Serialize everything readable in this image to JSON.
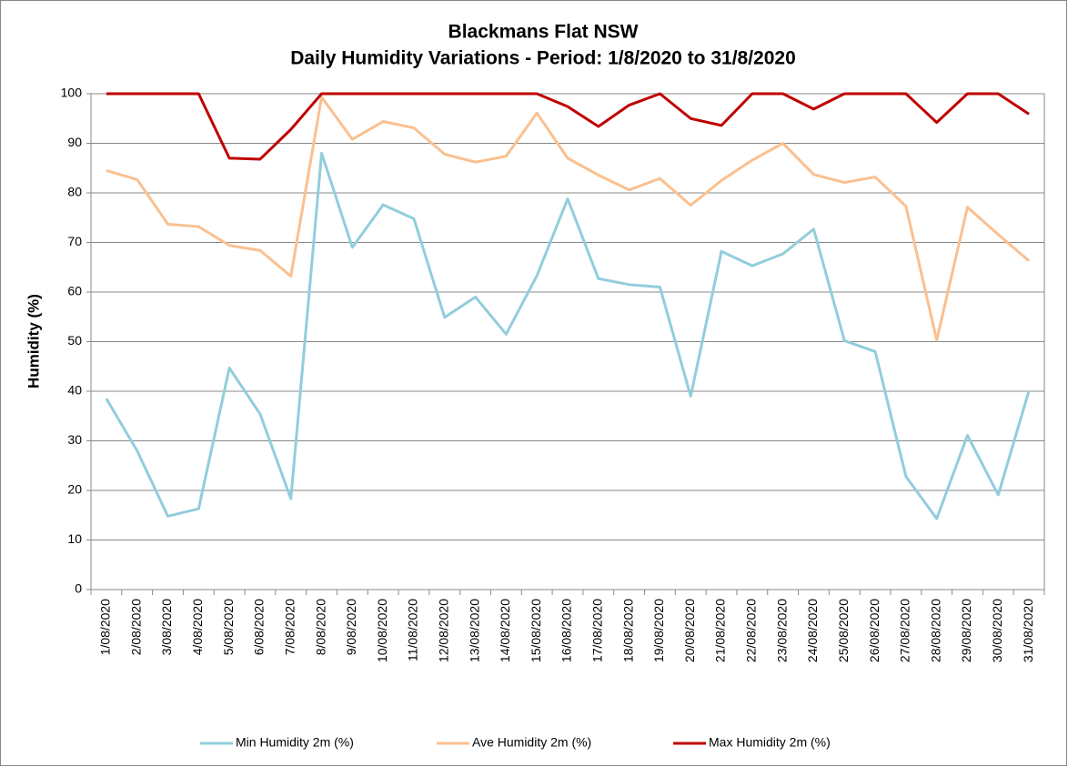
{
  "chart_data": {
    "type": "line",
    "title": "Blackmans Flat NSW",
    "subtitle": "Daily Humidity Variations - Period: 1/8/2020 to 31/8/2020",
    "y_label": "Humidity (%)",
    "categories": [
      "1/08/2020",
      "2/08/2020",
      "3/08/2020",
      "4/08/2020",
      "5/08/2020",
      "6/08/2020",
      "7/08/2020",
      "8/08/2020",
      "9/08/2020",
      "10/08/2020",
      "11/08/2020",
      "12/08/2020",
      "13/08/2020",
      "14/08/2020",
      "15/08/2020",
      "16/08/2020",
      "17/08/2020",
      "18/08/2020",
      "19/08/2020",
      "20/08/2020",
      "21/08/2020",
      "22/08/2020",
      "23/08/2020",
      "24/08/2020",
      "25/08/2020",
      "26/08/2020",
      "27/08/2020",
      "28/08/2020",
      "29/08/2020",
      "30/08/2020",
      "31/08/2020"
    ],
    "series": [
      {
        "name": "Min Humidity 2m (%)",
        "color": "#92cddc",
        "values": [
          38.5,
          28,
          14.8,
          16.3,
          44.7,
          35.4,
          18.3,
          88,
          69,
          77.6,
          74.8,
          54.9,
          59,
          51.5,
          63.3,
          78.8,
          62.7,
          61.5,
          61,
          39,
          68.2,
          65.3,
          67.7,
          72.7,
          50.2,
          48,
          22.8,
          14.3,
          31.1,
          19.1,
          40.1
        ]
      },
      {
        "name": "Ave Humidity 2m (%)",
        "color": "#fac090",
        "values": [
          84.5,
          82.7,
          73.7,
          73.2,
          69.4,
          68.4,
          63.2,
          99.3,
          90.8,
          94.4,
          93.1,
          87.8,
          86.2,
          87.4,
          96.1,
          87,
          83.6,
          80.6,
          82.9,
          77.5,
          82.5,
          86.6,
          90,
          83.7,
          82.1,
          83.2,
          77.3,
          50.3,
          77.1,
          71.6,
          66.3
        ]
      },
      {
        "name": "Max Humidity 2m (%)",
        "color": "#c00000",
        "values": [
          100,
          100,
          100,
          100,
          87,
          86.8,
          92.8,
          100,
          100,
          100,
          100,
          100,
          100,
          100,
          100,
          97.4,
          93.4,
          97.7,
          100,
          95,
          93.6,
          100,
          100,
          96.9,
          100,
          100,
          100,
          94.2,
          100,
          100,
          95.9
        ]
      }
    ],
    "ylim": [
      0,
      100
    ],
    "yticks": [
      0,
      10,
      20,
      30,
      40,
      50,
      60,
      70,
      80,
      90,
      100
    ],
    "grid": true,
    "legend": "bottom"
  }
}
